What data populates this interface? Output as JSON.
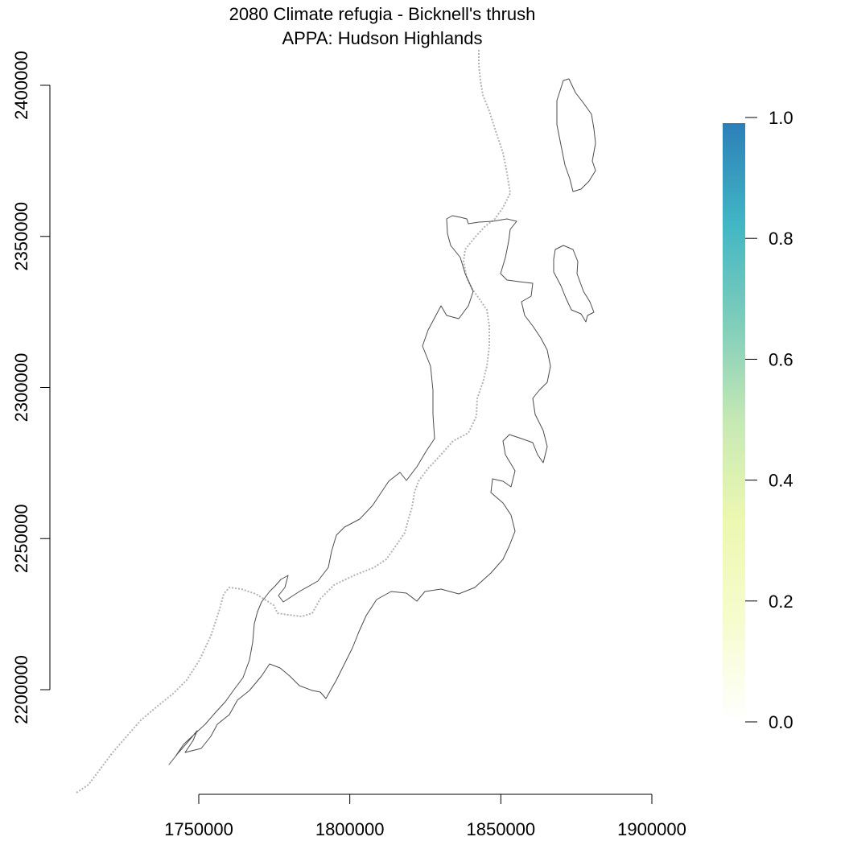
{
  "title": {
    "line1": "2080 Climate refugia - Bicknell's thrush",
    "line2": "APPA: Hudson Highlands"
  },
  "x_axis": {
    "ticks": [
      {
        "value": 1750000,
        "label": "1750000"
      },
      {
        "value": 1800000,
        "label": "1800000"
      },
      {
        "value": 1850000,
        "label": "1850000"
      },
      {
        "value": 1900000,
        "label": "1900000"
      }
    ]
  },
  "y_axis": {
    "ticks": [
      {
        "value": 2200000,
        "label": "2200000"
      },
      {
        "value": 2250000,
        "label": "2250000"
      },
      {
        "value": 2300000,
        "label": "2300000"
      },
      {
        "value": 2350000,
        "label": "2350000"
      },
      {
        "value": 2400000,
        "label": "2400000"
      }
    ]
  },
  "legend": {
    "min": 0.0,
    "max": 1.0,
    "ticks": [
      {
        "value": 0.0,
        "label": "0.0"
      },
      {
        "value": 0.2,
        "label": "0.2"
      },
      {
        "value": 0.4,
        "label": "0.4"
      },
      {
        "value": 0.6,
        "label": "0.6"
      },
      {
        "value": 0.8,
        "label": "0.8"
      },
      {
        "value": 1.0,
        "label": "1.0"
      }
    ],
    "colors": [
      "#ffffff",
      "#f7fcce",
      "#edf8b1",
      "#c7e9b4",
      "#7fcdbb",
      "#41b6c4",
      "#2c7fb8"
    ]
  },
  "colors": {
    "boundary": "#4d4d4d",
    "state_line": "#b3b3b3"
  }
}
